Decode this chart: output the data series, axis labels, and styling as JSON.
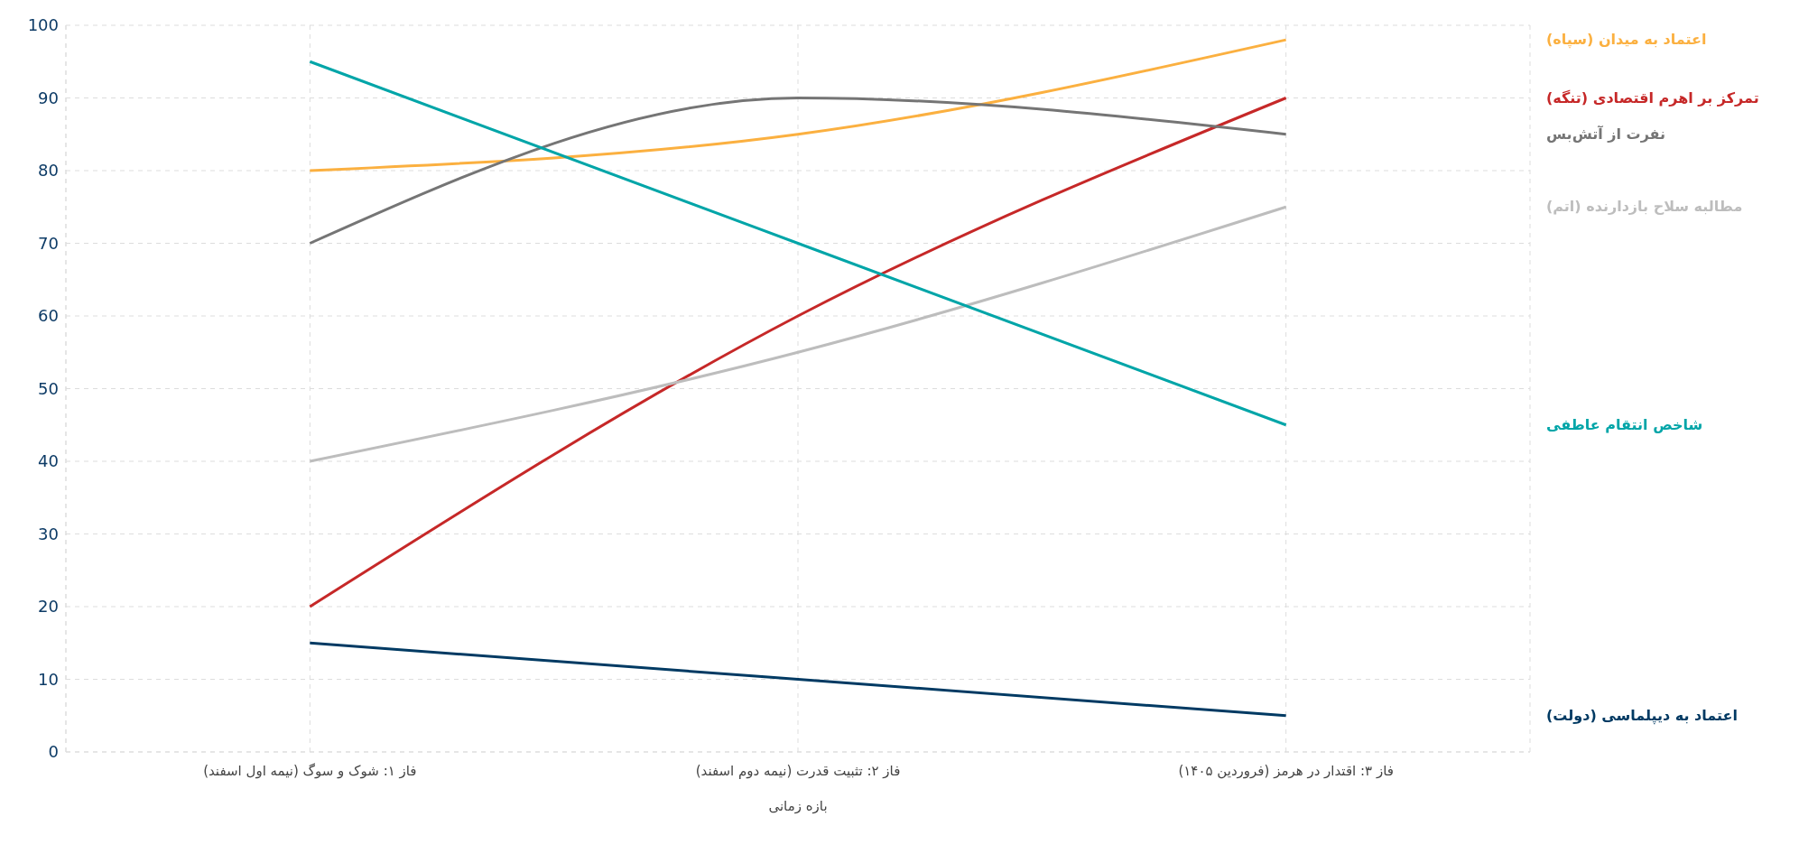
{
  "chart_data": {
    "type": "line",
    "xlabel": "بازه زمانی",
    "categories": [
      "فاز ۱: شوک و سوگ (نیمه اول اسفند)",
      "فاز ۲: تثبیت قدرت (نیمه دوم اسفند)",
      "فاز ۳: اقتدار در هرمز (فروردین ۱۴۰۵)"
    ],
    "series": [
      {
        "name": "اعتماد به میدان (سپاه)",
        "color": "#fbb040",
        "values": [
          80,
          85,
          98
        ]
      },
      {
        "name": "تمرکز بر اهرم اقتصادی (تنگه)",
        "color": "#c62828",
        "values": [
          20,
          60,
          90
        ]
      },
      {
        "name": "نفرت از آتش‌بس",
        "color": "#757575",
        "values": [
          70,
          90,
          85
        ]
      },
      {
        "name": "مطالبه سلاح بازدارنده (اتم)",
        "color": "#bdbdbd",
        "values": [
          40,
          55,
          75
        ]
      },
      {
        "name": "شاخص انتقام عاطفی",
        "color": "#00a5a8",
        "values": [
          95,
          70,
          45
        ]
      },
      {
        "name": "اعتماد به دیپلماسی (دولت)",
        "color": "#003a63",
        "values": [
          15,
          10,
          5
        ]
      }
    ],
    "ylim": [
      0,
      100
    ],
    "yticks": [
      0,
      10,
      20,
      30,
      40,
      50,
      60,
      70,
      80,
      90,
      100
    ],
    "grid": true,
    "marker": "none",
    "line_style": "solid"
  }
}
